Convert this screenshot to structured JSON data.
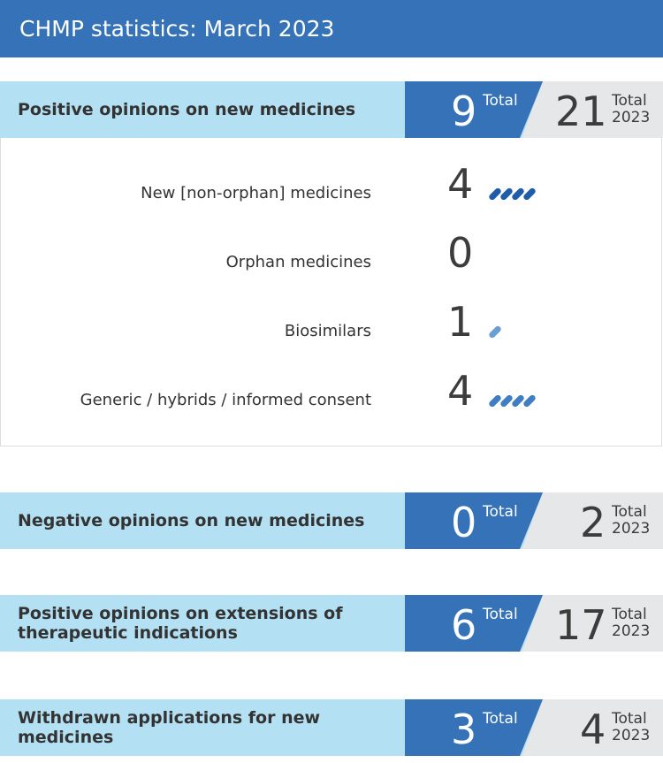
{
  "title": "CHMP statistics: March 2023",
  "total_label": "Total",
  "year_label": "2023",
  "sections": [
    {
      "label": "Positive opinions on new medicines",
      "month": "9",
      "year_total": "21"
    },
    {
      "label": "Negative opinions on new medicines",
      "month": "0",
      "year_total": "2"
    },
    {
      "label": "Positive opinions on extensions of therapeutic indications",
      "month": "6",
      "year_total": "17"
    },
    {
      "label": "Withdrawn applications for new medicines",
      "month": "3",
      "year_total": "4"
    }
  ],
  "breakdown": [
    {
      "label": "New [non-orphan] medicines",
      "count": "4",
      "pills": 4,
      "color": "#1f5dab"
    },
    {
      "label": "Orphan medicines",
      "count": "0",
      "pills": 0,
      "color": "#1f5dab"
    },
    {
      "label": "Biosimilars",
      "count": "1",
      "pills": 1,
      "color": "#6b9fd4"
    },
    {
      "label": "Generic / hybrids / informed consent",
      "count": "4",
      "pills": 4,
      "color": "#3f7ec3"
    }
  ],
  "colors": {
    "header": "#3572b7",
    "band": "#b3e0f3",
    "gray": "#e6e7e8"
  }
}
